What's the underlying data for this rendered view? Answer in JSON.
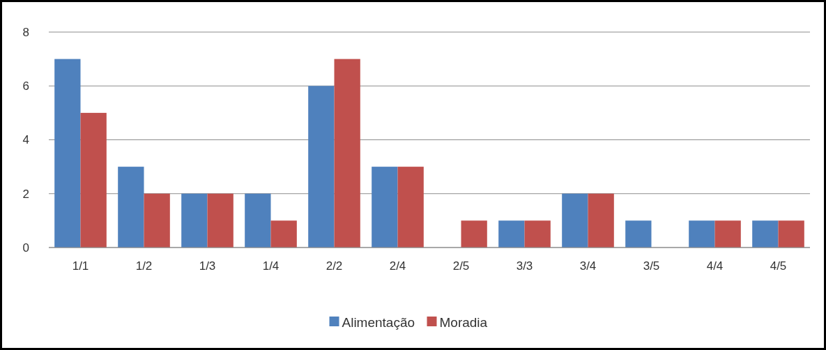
{
  "chart_data": {
    "type": "bar",
    "categories": [
      "1/1",
      "1/2",
      "1/3",
      "1/4",
      "2/2",
      "2/4",
      "2/5",
      "3/3",
      "3/4",
      "3/5",
      "4/4",
      "4/5"
    ],
    "series": [
      {
        "name": "Alimentação",
        "color": "#4f81bd",
        "values": [
          7,
          3,
          2,
          2,
          6,
          3,
          0,
          1,
          2,
          1,
          1,
          1
        ]
      },
      {
        "name": "Moradia",
        "color": "#c0504d",
        "values": [
          5,
          2,
          2,
          1,
          7,
          3,
          1,
          1,
          2,
          0,
          1,
          1
        ]
      }
    ],
    "ylim": [
      0,
      8
    ],
    "yticks": [
      0,
      2,
      4,
      6,
      8
    ],
    "grid": "y",
    "legend": "bottom"
  }
}
